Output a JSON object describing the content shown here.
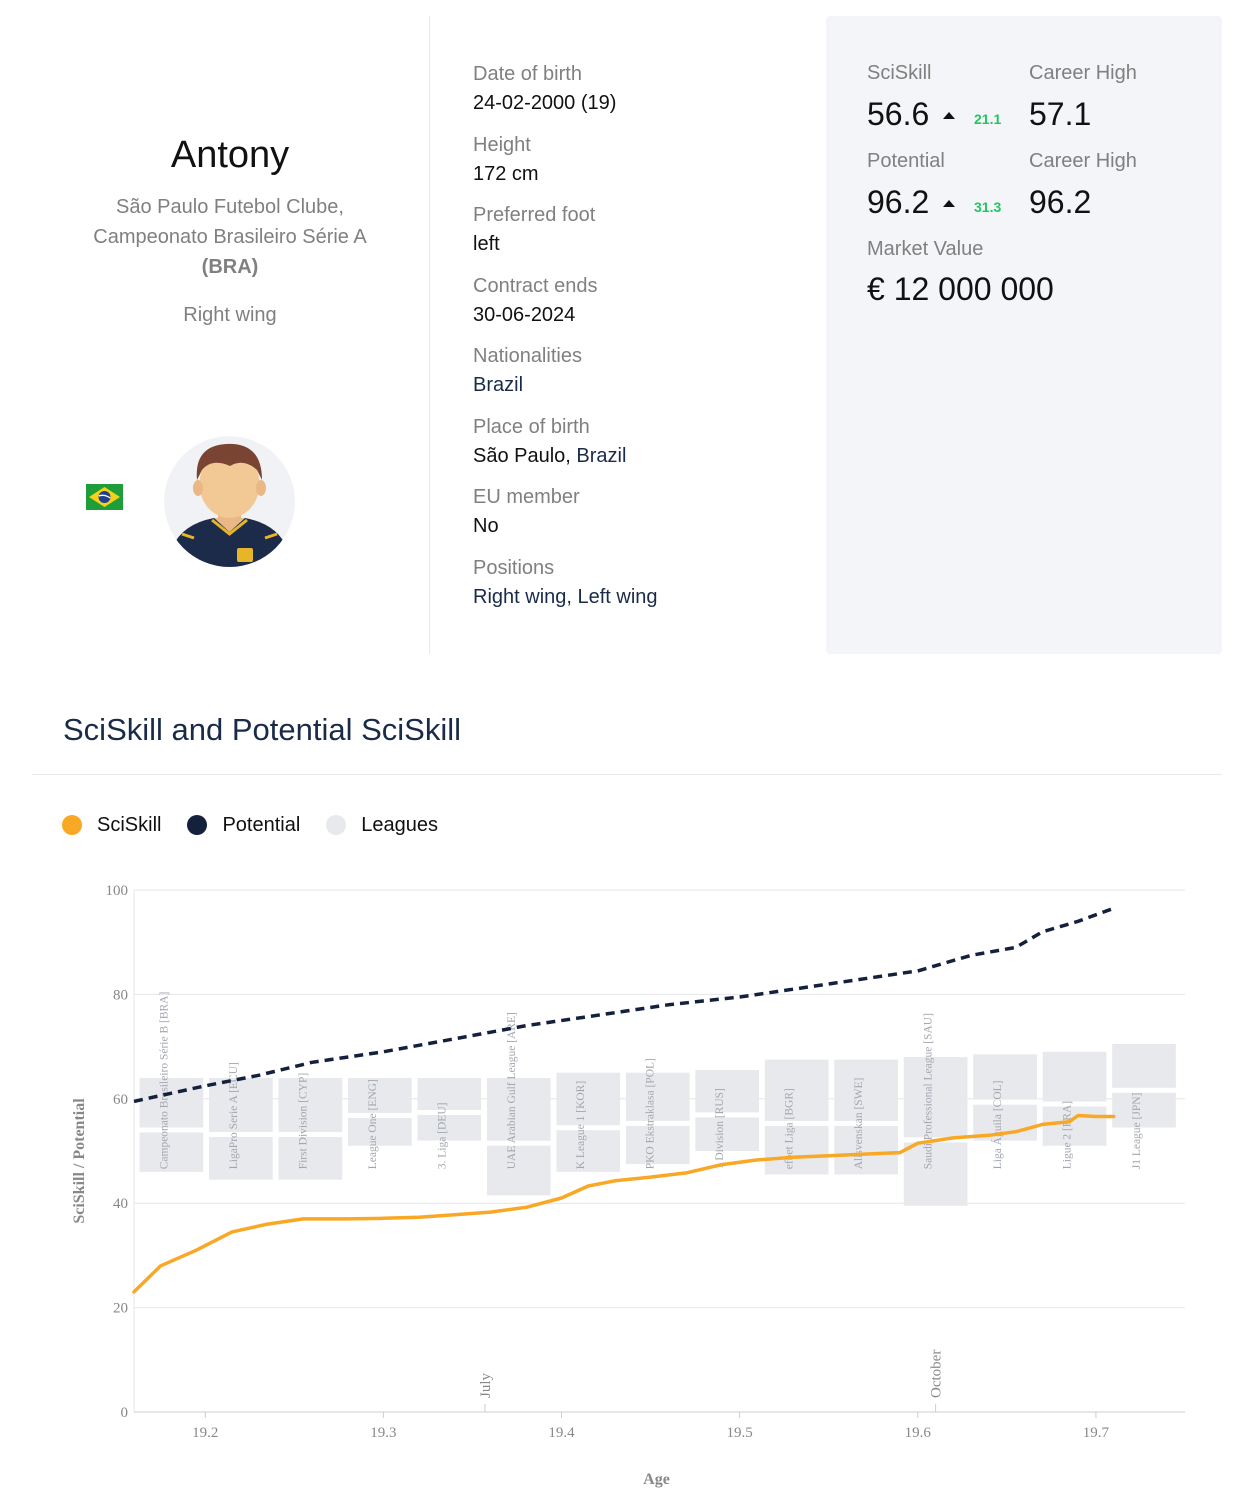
{
  "player": {
    "name": "Antony",
    "club_line1": "São Paulo Futebol Clube,",
    "club_line2": "Campeonato Brasileiro Série A",
    "country_code": "(BRA)",
    "main_position": "Right wing",
    "flag_icon": "brazil-flag-icon",
    "avatar_icon": "player-avatar-icon"
  },
  "details": {
    "dob_label": "Date of birth",
    "dob_value": "24-02-2000 (19)",
    "height_label": "Height",
    "height_value": "172 cm",
    "foot_label": "Preferred foot",
    "foot_value": "left",
    "contract_label": "Contract ends",
    "contract_value": "30-06-2024",
    "nationalities_label": "Nationalities",
    "nationalities_value": "Brazil",
    "pob_label": "Place of birth",
    "pob_city": "São Paulo,",
    "pob_country": "Brazil",
    "eu_label": "EU member",
    "eu_value": "No",
    "positions_label": "Positions",
    "positions_value": "Right wing, Left wing"
  },
  "stats": {
    "sciskill_label": "SciSkill",
    "sciskill_value": "56.6",
    "sciskill_delta": "21.1",
    "sciskill_high_label": "Career High",
    "sciskill_high_value": "57.1",
    "potential_label": "Potential",
    "potential_value": "96.2",
    "potential_delta": "31.3",
    "potential_high_label": "Career High",
    "potential_high_value": "96.2",
    "market_label": "Market Value",
    "market_value": "€ 12 000 000",
    "delta_color": "#22c55e"
  },
  "chart_section": {
    "title": "SciSkill and Potential SciSkill"
  },
  "legend": [
    {
      "label": "SciSkill",
      "color": "#f9a825"
    },
    {
      "label": "Potential",
      "color": "#14213d"
    },
    {
      "label": "Leagues",
      "color": "#e8e9ed"
    }
  ],
  "chart_data": {
    "type": "line",
    "xlabel": "Age",
    "ylabel": "SciSkill / Potential",
    "xlim": [
      19.16,
      19.75
    ],
    "ylim": [
      0,
      100
    ],
    "xticks": [
      "19.2",
      "19.3",
      "19.4",
      "19.5",
      "19.6",
      "19.7"
    ],
    "yticks": [
      "0",
      "20",
      "40",
      "60",
      "80",
      "100"
    ],
    "grid": true,
    "legend_position": "top-left",
    "series": [
      {
        "name": "SciSkill",
        "color": "#f9a825",
        "style": "solid",
        "x": [
          19.16,
          19.175,
          19.195,
          19.215,
          19.235,
          19.255,
          19.28,
          19.3,
          19.32,
          19.34,
          19.36,
          19.38,
          19.4,
          19.415,
          19.43,
          19.45,
          19.47,
          19.49,
          19.51,
          19.53,
          19.55,
          19.57,
          19.59,
          19.6,
          19.62,
          19.64,
          19.655,
          19.67,
          19.685,
          19.69,
          19.7,
          19.71
        ],
        "y": [
          23,
          28,
          31,
          34.5,
          36,
          37,
          37,
          37.1,
          37.3,
          37.8,
          38.3,
          39.2,
          41,
          43.3,
          44.3,
          45,
          45.8,
          47.4,
          48.3,
          48.8,
          49.1,
          49.4,
          49.7,
          51.5,
          52.5,
          53,
          53.7,
          55.1,
          55.6,
          56.8,
          56.6,
          56.6
        ]
      },
      {
        "name": "Potential",
        "color": "#14213d",
        "style": "dashed",
        "x": [
          19.16,
          19.2,
          19.23,
          19.26,
          19.3,
          19.34,
          19.38,
          19.42,
          19.46,
          19.5,
          19.54,
          19.58,
          19.6,
          19.63,
          19.655,
          19.67,
          19.69,
          19.71
        ],
        "y": [
          59.5,
          62.5,
          64.5,
          67,
          69,
          71.5,
          74,
          76,
          78,
          79.5,
          81.5,
          83.5,
          84.5,
          87.5,
          89,
          92,
          94,
          96.5
        ]
      }
    ],
    "leagues": [
      {
        "name": "Campeonato Brasileiro Série B [BRA]",
        "x0": 19.162,
        "x1": 19.2,
        "top": 64,
        "low": 46
      },
      {
        "name": "LigaPro Serie A [ECU]",
        "x0": 19.201,
        "x1": 19.239,
        "top": 64,
        "low": 44.5
      },
      {
        "name": "First Division [CYP]",
        "x0": 19.24,
        "x1": 19.278,
        "top": 64,
        "low": 44.5
      },
      {
        "name": "League One [ENG]",
        "x0": 19.279,
        "x1": 19.317,
        "top": 64,
        "low": 51
      },
      {
        "name": "3. Liga [DEU]",
        "x0": 19.318,
        "x1": 19.356,
        "top": 64,
        "low": 52
      },
      {
        "name": "UAE Arabian Gulf League [ARE]",
        "x0": 19.357,
        "x1": 19.395,
        "top": 64,
        "low": 41.5
      },
      {
        "name": "K League 1 [KOR]",
        "x0": 19.396,
        "x1": 19.434,
        "top": 65,
        "low": 46
      },
      {
        "name": "PKO Ekstraklasa [POL]",
        "x0": 19.435,
        "x1": 19.473,
        "top": 65,
        "low": 47.5
      },
      {
        "name": "1 Division [RUS]",
        "x0": 19.474,
        "x1": 19.512,
        "top": 65.5,
        "low": 50
      },
      {
        "name": "efbet Liga [BGR]",
        "x0": 19.513,
        "x1": 19.551,
        "top": 67.5,
        "low": 45.5
      },
      {
        "name": "Allsvenskan [SWE]",
        "x0": 19.552,
        "x1": 19.59,
        "top": 67.5,
        "low": 45.5
      },
      {
        "name": "Saudi Professional League [SAU]",
        "x0": 19.591,
        "x1": 19.629,
        "top": 68,
        "low": 39.5
      },
      {
        "name": "Liga Águila [COL]",
        "x0": 19.63,
        "x1": 19.668,
        "top": 68.5,
        "low": 52
      },
      {
        "name": "Ligue 2 [FRA]",
        "x0": 19.669,
        "x1": 19.707,
        "top": 69,
        "low": 51
      },
      {
        "name": "J1 League [JPN]",
        "x0": 19.708,
        "x1": 19.746,
        "top": 70.5,
        "low": 54.5
      }
    ],
    "annotations": [
      {
        "text": "July",
        "x": 19.357
      },
      {
        "text": "October",
        "x": 19.61
      }
    ]
  }
}
